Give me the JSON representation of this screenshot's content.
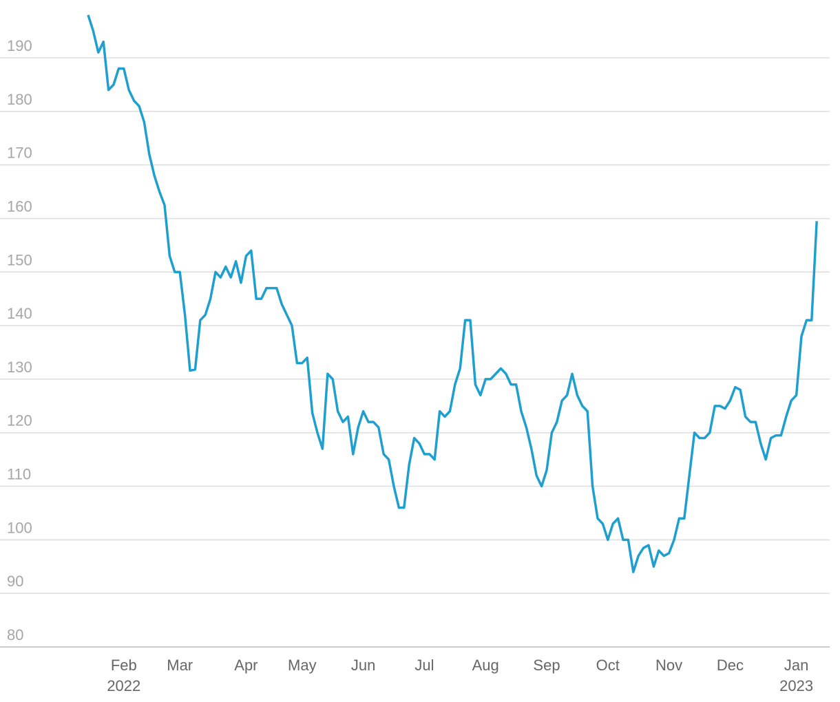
{
  "chart_data": {
    "type": "line",
    "categories": [
      null,
      null,
      null,
      null,
      null,
      null,
      null,
      "Feb 2022",
      null,
      null,
      null,
      null,
      null,
      null,
      null,
      null,
      null,
      null,
      "Mar",
      null,
      null,
      null,
      null,
      null,
      null,
      null,
      null,
      null,
      null,
      null,
      null,
      "Apr",
      null,
      null,
      null,
      null,
      null,
      null,
      null,
      null,
      null,
      null,
      "May",
      null,
      null,
      null,
      null,
      null,
      null,
      null,
      null,
      null,
      null,
      null,
      "Jun",
      null,
      null,
      null,
      null,
      null,
      null,
      null,
      null,
      null,
      null,
      null,
      "Jul",
      null,
      null,
      null,
      null,
      null,
      null,
      null,
      null,
      null,
      null,
      null,
      "Aug",
      null,
      null,
      null,
      null,
      null,
      null,
      null,
      null,
      null,
      null,
      null,
      "Sep",
      null,
      null,
      null,
      null,
      null,
      null,
      null,
      null,
      null,
      null,
      null,
      "Oct",
      null,
      null,
      null,
      null,
      null,
      null,
      null,
      null,
      null,
      null,
      null,
      "Nov",
      null,
      null,
      null,
      null,
      null,
      null,
      null,
      null,
      null,
      null,
      null,
      "Dec",
      null,
      null,
      null,
      null,
      null,
      null,
      null,
      null,
      null,
      null,
      null,
      null,
      "Jan 2023",
      null,
      null,
      null,
      null
    ],
    "series": [
      {
        "color": "#1f9fcf",
        "values": [
          198,
          195,
          191,
          193,
          184,
          185,
          188,
          188,
          184,
          182,
          181,
          178,
          172,
          168,
          165,
          162.5,
          153,
          150,
          150,
          142,
          131.6,
          131.8,
          141,
          142,
          145,
          150,
          149,
          151,
          149,
          152,
          148,
          153,
          154,
          145,
          145,
          147,
          147,
          147,
          144,
          142,
          140,
          133,
          133,
          134,
          123.7,
          120,
          117,
          131,
          130,
          124,
          122,
          123,
          116,
          121,
          124,
          122,
          122,
          121,
          116,
          115,
          110,
          106,
          106,
          114,
          119,
          118,
          116,
          116,
          115,
          124,
          123,
          124,
          129,
          132,
          141,
          141,
          129,
          127,
          130,
          130,
          131,
          132,
          131,
          129,
          129,
          124,
          121,
          117,
          112,
          110,
          113,
          120,
          122,
          126,
          127,
          131,
          127,
          125,
          124,
          110,
          104,
          103,
          100,
          103,
          104,
          100,
          100,
          94,
          97,
          98.5,
          99,
          95,
          98,
          97,
          97.5,
          100,
          104,
          104,
          112,
          120,
          119,
          119,
          120,
          125,
          125,
          124.5,
          126,
          128.5,
          128,
          123,
          122,
          122,
          118,
          115,
          119,
          119.5,
          119.5,
          123,
          126,
          127,
          138,
          141,
          141,
          159.5
        ]
      }
    ],
    "ylim": [
      80,
      190
    ],
    "yticks": [
      80,
      90,
      100,
      110,
      120,
      130,
      140,
      150,
      160,
      170,
      180,
      190
    ],
    "grid": true
  }
}
